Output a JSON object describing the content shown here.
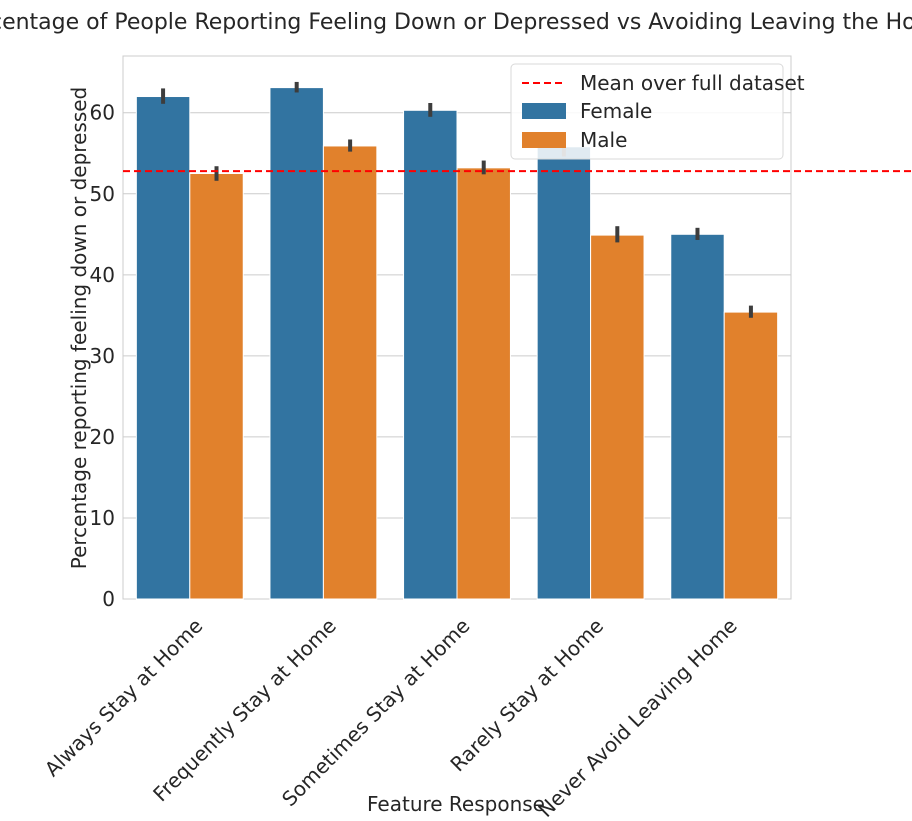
{
  "chart_data": {
    "type": "bar",
    "title": "Percentage of People Reporting Feeling Down or Depressed vs Avoiding Leaving the House",
    "xlabel": "Feature Response",
    "ylabel": "Percentage reporting feeling down or depressed",
    "categories": [
      "Always Stay at Home",
      "Frequently Stay at Home",
      "Sometimes Stay at Home",
      "Rarely Stay at Home",
      "Never Avoid Leaving Home"
    ],
    "series": [
      {
        "name": "Female",
        "color": "#3274a1",
        "values": [
          62.0,
          63.1,
          60.3,
          55.8,
          45.0
        ],
        "ci_low": [
          61.1,
          62.5,
          59.5,
          54.6,
          44.3
        ],
        "ci_high": [
          63.0,
          63.8,
          61.2,
          57.0,
          45.8
        ]
      },
      {
        "name": "Male",
        "color": "#e1812c",
        "values": [
          52.5,
          55.9,
          53.2,
          44.9,
          35.4
        ],
        "ci_low": [
          51.6,
          55.2,
          52.4,
          44.0,
          34.7
        ],
        "ci_high": [
          53.4,
          56.7,
          54.1,
          46.0,
          36.2
        ]
      }
    ],
    "reference_line": {
      "label": "Mean over full dataset",
      "value": 52.8,
      "color": "#ff0000",
      "style": "dashed"
    },
    "ylim": [
      0,
      67
    ],
    "yticks": [
      0,
      10,
      20,
      30,
      40,
      50,
      60
    ],
    "grid": "horizontal",
    "legend_position": "top-right"
  }
}
